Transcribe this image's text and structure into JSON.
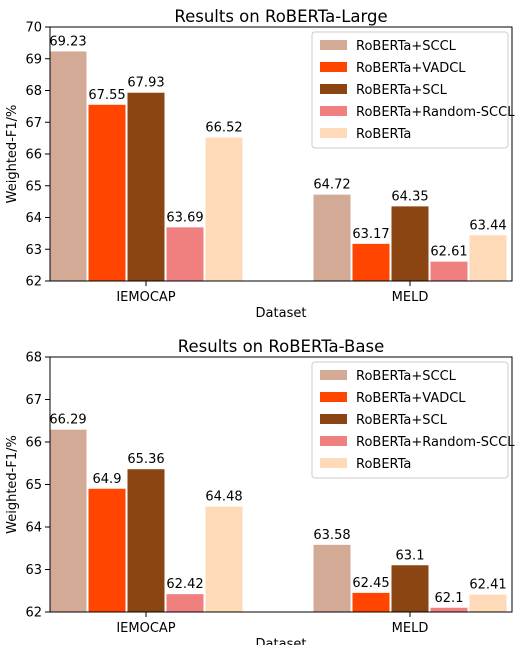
{
  "chart_data": [
    {
      "type": "bar",
      "title": "Results on RoBERTa-Large",
      "xlabel": "Dataset",
      "ylabel": "Weighted-F1/%",
      "ylim": [
        62,
        70
      ],
      "yticks": [
        62,
        63,
        64,
        65,
        66,
        67,
        68,
        69,
        70
      ],
      "categories": [
        "IEMOCAP",
        "MELD"
      ],
      "legend": "top-right",
      "series": [
        {
          "name": "RoBERTa+SCCL",
          "color": "#d2aa96",
          "values": [
            69.23,
            64.72
          ],
          "labels": [
            "69.23",
            "64.72"
          ]
        },
        {
          "name": "RoBERTa+VADCL",
          "color": "#ff4500",
          "values": [
            67.55,
            63.17
          ],
          "labels": [
            "67.55",
            "63.17"
          ]
        },
        {
          "name": "RoBERTa+SCL",
          "color": "#8b4513",
          "values": [
            67.93,
            64.35
          ],
          "labels": [
            "67.93",
            "64.35"
          ]
        },
        {
          "name": "RoBERTa+Random-SCCL",
          "color": "#f08080",
          "values": [
            63.69,
            62.61
          ],
          "labels": [
            "63.69",
            "62.61"
          ]
        },
        {
          "name": "RoBERTa",
          "color": "#ffdab9",
          "values": [
            66.52,
            63.44
          ],
          "labels": [
            "66.52",
            "63.44"
          ]
        }
      ]
    },
    {
      "type": "bar",
      "title": "Results on RoBERTa-Base",
      "xlabel": "Dataset",
      "ylabel": "Weighted-F1/%",
      "ylim": [
        62,
        68
      ],
      "yticks": [
        62,
        63,
        64,
        65,
        66,
        67,
        68
      ],
      "categories": [
        "IEMOCAP",
        "MELD"
      ],
      "legend": "top-right",
      "series": [
        {
          "name": "RoBERTa+SCCL",
          "color": "#d2aa96",
          "values": [
            66.29,
            63.58
          ],
          "labels": [
            "66.29",
            "63.58"
          ]
        },
        {
          "name": "RoBERTa+VADCL",
          "color": "#ff4500",
          "values": [
            64.9,
            62.45
          ],
          "labels": [
            "64.9",
            "62.45"
          ]
        },
        {
          "name": "RoBERTa+SCL",
          "color": "#8b4513",
          "values": [
            65.36,
            63.1
          ],
          "labels": [
            "65.36",
            "63.1"
          ]
        },
        {
          "name": "RoBERTa+Random-SCCL",
          "color": "#f08080",
          "values": [
            62.42,
            62.1
          ],
          "labels": [
            "62.42",
            "62.1"
          ]
        },
        {
          "name": "RoBERTa",
          "color": "#ffdab9",
          "values": [
            64.48,
            62.41
          ],
          "labels": [
            "64.48",
            "62.41"
          ]
        }
      ]
    }
  ]
}
